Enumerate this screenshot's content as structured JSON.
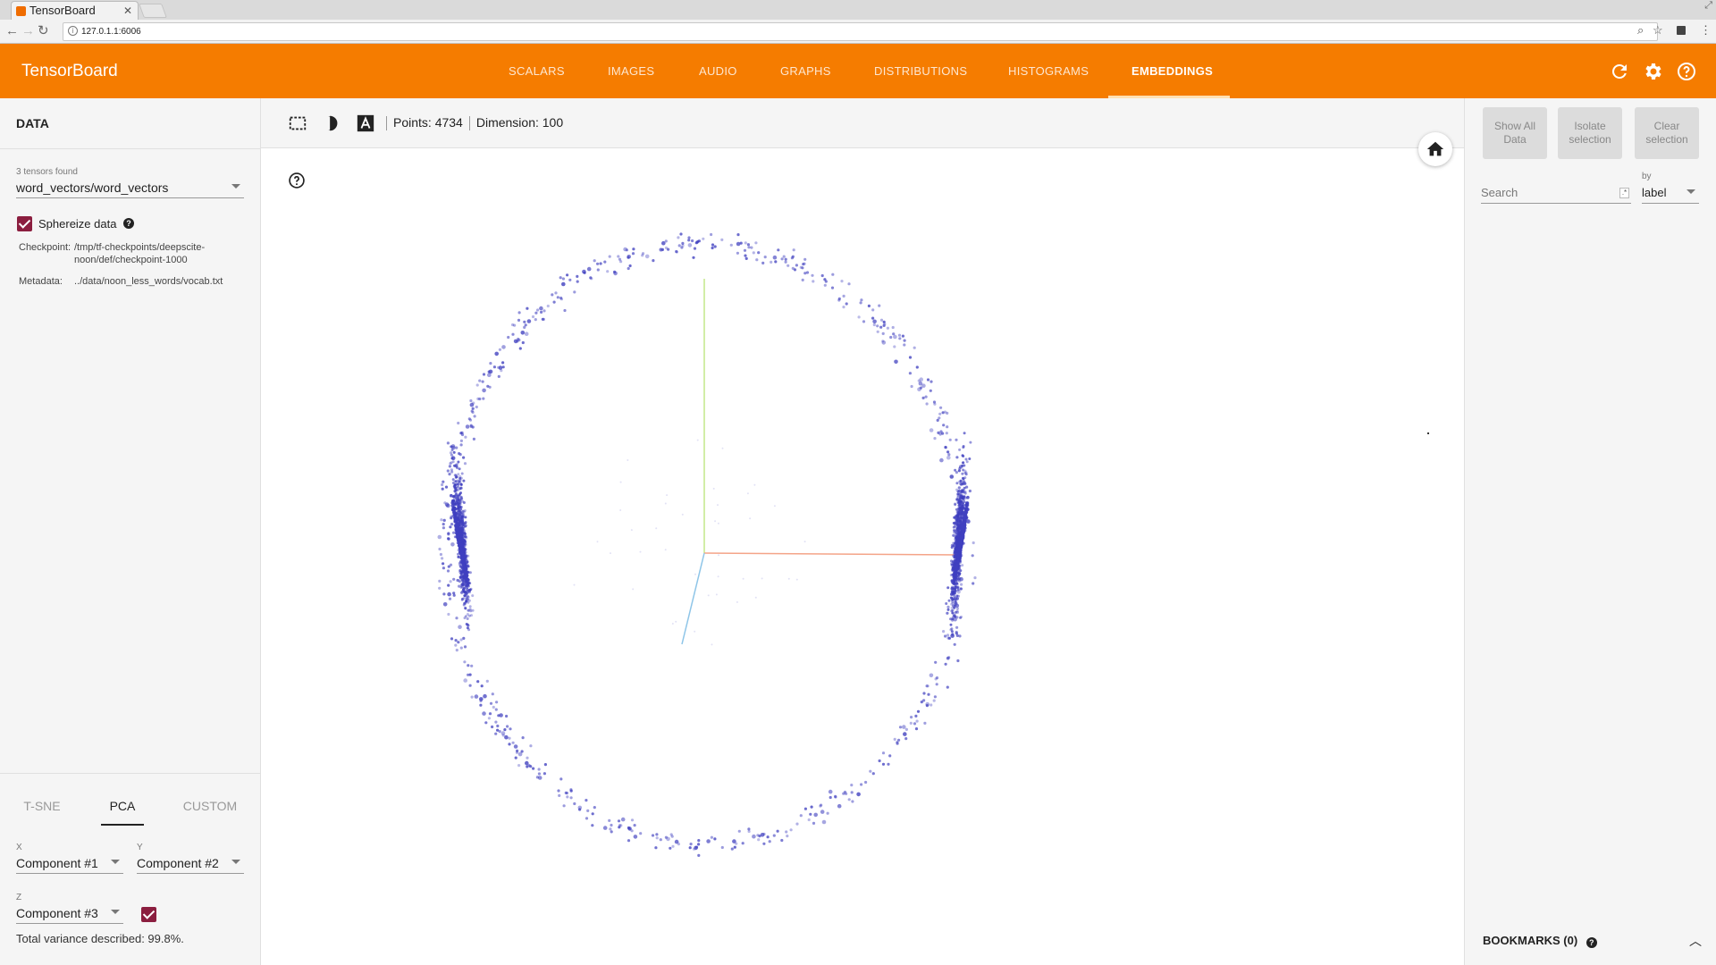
{
  "browser": {
    "tab_title": "TensorBoard",
    "url": "127.0.1.1:6006"
  },
  "header": {
    "brand": "TensorBoard",
    "tabs": [
      "SCALARS",
      "IMAGES",
      "AUDIO",
      "GRAPHS",
      "DISTRIBUTIONS",
      "HISTOGRAMS",
      "EMBEDDINGS"
    ],
    "active_tab": "EMBEDDINGS",
    "icons": [
      "refresh-icon",
      "settings-icon",
      "help-icon"
    ]
  },
  "data_panel": {
    "title": "DATA",
    "tensors_found": "3 tensors found",
    "tensor_value": "word_vectors/word_vectors",
    "sphereize_label": "Sphereize data",
    "sphereize_checked": true,
    "checkpoint_label": "Checkpoint:",
    "checkpoint_value": "/tmp/tf-checkpoints/deepscite-noon/def/checkpoint-1000",
    "metadata_label": "Metadata:",
    "metadata_value": "../data/noon_less_words/vocab.txt"
  },
  "projection": {
    "tabs": [
      "T-SNE",
      "PCA",
      "CUSTOM"
    ],
    "active_tab": "PCA",
    "x_label": "X",
    "x_value": "Component #1",
    "y_label": "Y",
    "y_value": "Component #2",
    "z_label": "Z",
    "z_value": "Component #3",
    "z_enabled": true,
    "variance": "Total variance described: 99.8%."
  },
  "toolbar": {
    "points_text": "Points: 4734",
    "dimension_text": "Dimension: 100",
    "icons": [
      "selection-box-icon",
      "night-mode-icon",
      "labels-icon"
    ]
  },
  "inspector": {
    "show_all": "Show All Data",
    "isolate": "Isolate selection",
    "clear": "Clear selection",
    "search_placeholder": "Search",
    "by_label": "by",
    "by_value": "label",
    "bookmarks": "BOOKMARKS (0)"
  },
  "colors": {
    "header": "#f57c00",
    "points": "#3f3fbf",
    "checkbox": "#8b1e3f",
    "axis_x": "#f4a488",
    "axis_y": "#c4e88a",
    "axis_z": "#8ec5e8"
  }
}
